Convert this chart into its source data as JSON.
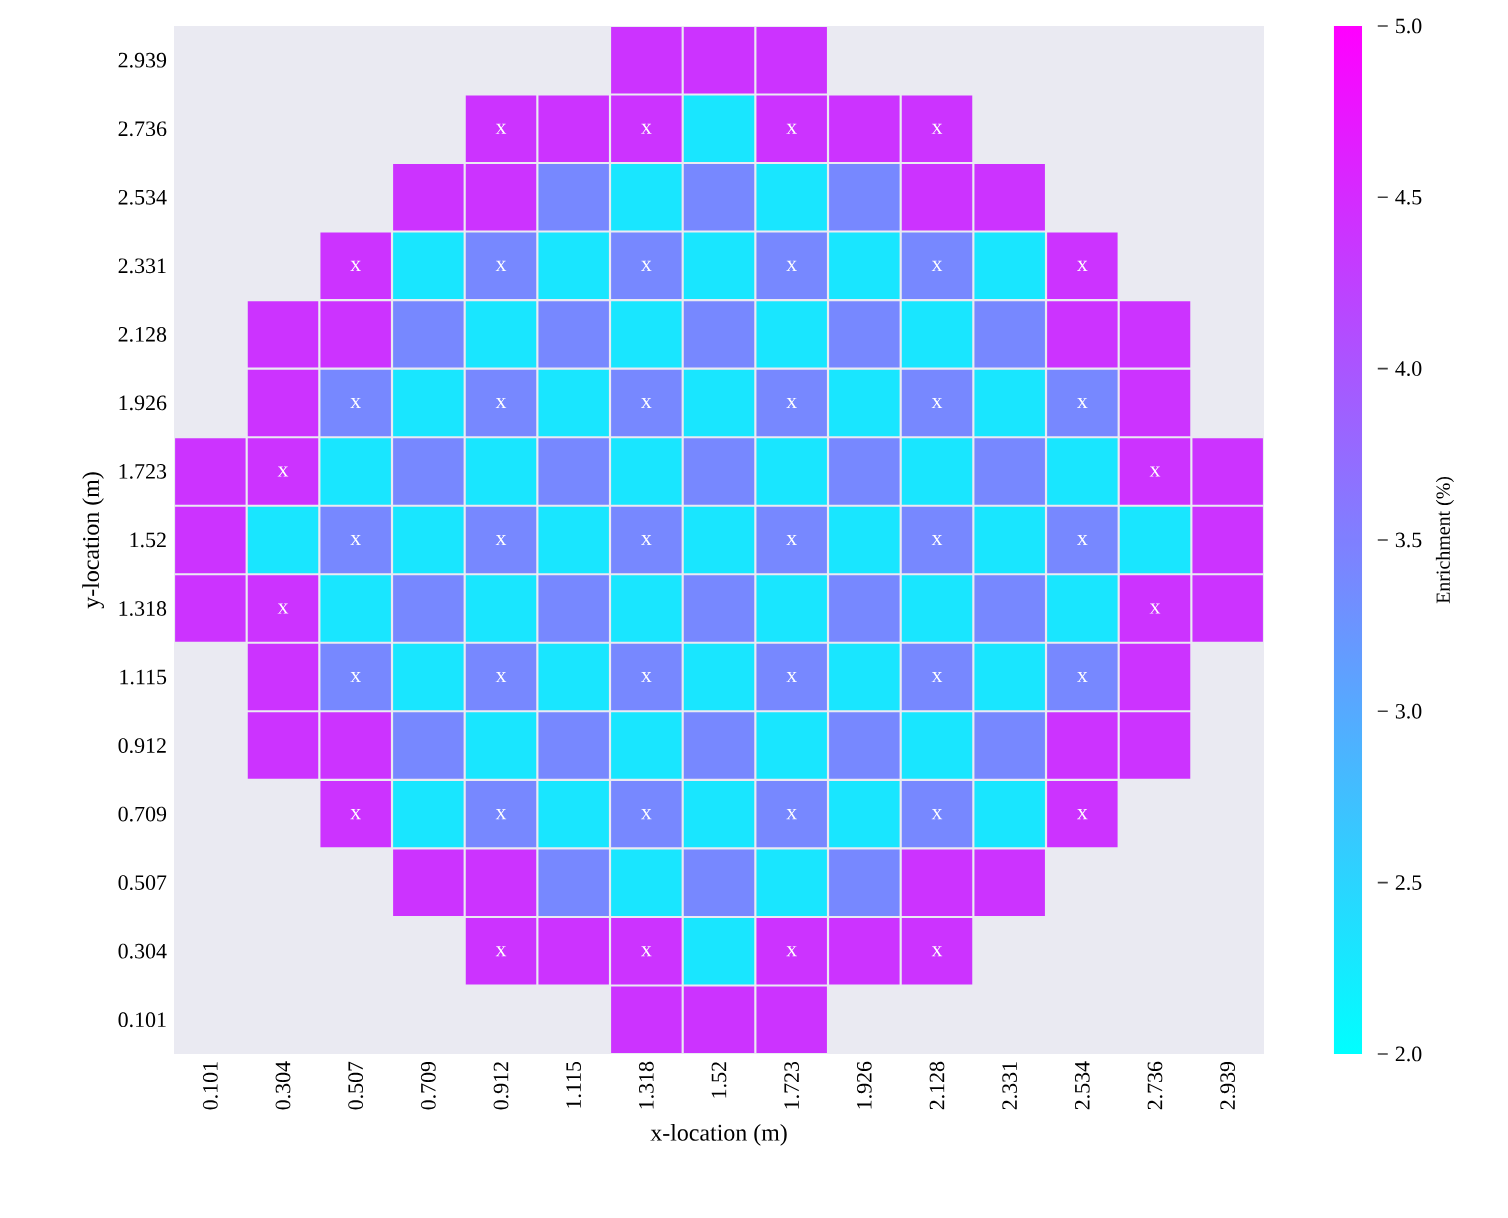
{
  "chart_data": {
    "type": "heatmap",
    "xlabel": "x-location (m)",
    "ylabel": "y-location (m)",
    "clabel": "Enrichment (%)",
    "categories": [
      "0.101",
      "0.304",
      "0.507",
      "0.709",
      "0.912",
      "1.115",
      "1.318",
      "1.52",
      "1.723",
      "1.926",
      "2.128",
      "2.331",
      "2.534",
      "2.736",
      "2.939"
    ],
    "y_categories": [
      "2.939",
      "2.736",
      "2.534",
      "2.331",
      "2.128",
      "1.926",
      "1.723",
      "1.52",
      "1.318",
      "1.115",
      "0.912",
      "0.709",
      "0.507",
      "0.304",
      "0.101"
    ],
    "cells": [
      [
        null,
        null,
        null,
        null,
        null,
        null,
        4.4,
        4.4,
        4.4,
        null,
        null,
        null,
        null,
        null,
        null
      ],
      [
        null,
        null,
        null,
        null,
        4.4,
        4.4,
        4.4,
        2.3,
        4.4,
        4.4,
        4.4,
        null,
        null,
        null,
        null
      ],
      [
        null,
        null,
        null,
        4.4,
        4.4,
        3.4,
        2.3,
        3.4,
        2.3,
        3.4,
        4.4,
        4.4,
        null,
        null,
        null
      ],
      [
        null,
        null,
        4.4,
        2.3,
        3.4,
        2.3,
        3.4,
        2.3,
        3.4,
        2.3,
        3.4,
        2.3,
        4.4,
        null,
        null
      ],
      [
        null,
        4.4,
        4.4,
        3.4,
        2.3,
        3.4,
        2.3,
        3.4,
        2.3,
        3.4,
        2.3,
        3.4,
        4.4,
        4.4,
        null
      ],
      [
        null,
        4.4,
        3.4,
        2.3,
        3.4,
        2.3,
        3.4,
        2.3,
        3.4,
        2.3,
        3.4,
        2.3,
        3.4,
        4.4,
        null
      ],
      [
        4.4,
        4.4,
        2.3,
        3.4,
        2.3,
        3.4,
        2.3,
        3.4,
        2.3,
        3.4,
        2.3,
        3.4,
        2.3,
        4.4,
        4.4
      ],
      [
        4.4,
        2.3,
        3.4,
        2.3,
        3.4,
        2.3,
        3.4,
        2.3,
        3.4,
        2.3,
        3.4,
        2.3,
        3.4,
        2.3,
        4.4
      ],
      [
        4.4,
        4.4,
        2.3,
        3.4,
        2.3,
        3.4,
        2.3,
        3.4,
        2.3,
        3.4,
        2.3,
        3.4,
        2.3,
        4.4,
        4.4
      ],
      [
        null,
        4.4,
        3.4,
        2.3,
        3.4,
        2.3,
        3.4,
        2.3,
        3.4,
        2.3,
        3.4,
        2.3,
        3.4,
        4.4,
        null
      ],
      [
        null,
        4.4,
        4.4,
        3.4,
        2.3,
        3.4,
        2.3,
        3.4,
        2.3,
        3.4,
        2.3,
        3.4,
        4.4,
        4.4,
        null
      ],
      [
        null,
        null,
        4.4,
        2.3,
        3.4,
        2.3,
        3.4,
        2.3,
        3.4,
        2.3,
        3.4,
        2.3,
        4.4,
        null,
        null
      ],
      [
        null,
        null,
        null,
        4.4,
        4.4,
        3.4,
        2.3,
        3.4,
        2.3,
        3.4,
        4.4,
        4.4,
        null,
        null,
        null
      ],
      [
        null,
        null,
        null,
        null,
        4.4,
        4.4,
        4.4,
        2.3,
        4.4,
        4.4,
        4.4,
        null,
        null,
        null,
        null
      ],
      [
        null,
        null,
        null,
        null,
        null,
        null,
        4.4,
        4.4,
        4.4,
        null,
        null,
        null,
        null,
        null,
        null
      ]
    ],
    "cell_labels": [
      [
        null,
        null,
        null,
        null,
        null,
        null,
        null,
        null,
        null,
        null,
        null,
        null,
        null,
        null,
        null
      ],
      [
        null,
        null,
        null,
        null,
        "x",
        null,
        "x",
        null,
        "x",
        null,
        "x",
        null,
        null,
        null,
        null
      ],
      [
        null,
        null,
        null,
        null,
        null,
        null,
        null,
        null,
        null,
        null,
        null,
        null,
        null,
        null,
        null
      ],
      [
        null,
        null,
        "x",
        null,
        "x",
        null,
        "x",
        null,
        "x",
        null,
        "x",
        null,
        "x",
        null,
        null
      ],
      [
        null,
        null,
        null,
        null,
        null,
        null,
        null,
        null,
        null,
        null,
        null,
        null,
        null,
        null,
        null
      ],
      [
        null,
        null,
        "x",
        null,
        "x",
        null,
        "x",
        null,
        "x",
        null,
        "x",
        null,
        "x",
        null,
        null
      ],
      [
        null,
        "x",
        null,
        null,
        null,
        null,
        null,
        null,
        null,
        null,
        null,
        null,
        null,
        "x",
        null
      ],
      [
        null,
        null,
        "x",
        null,
        "x",
        null,
        "x",
        null,
        "x",
        null,
        "x",
        null,
        "x",
        null,
        null
      ],
      [
        null,
        "x",
        null,
        null,
        null,
        null,
        null,
        null,
        null,
        null,
        null,
        null,
        null,
        "x",
        null
      ],
      [
        null,
        null,
        "x",
        null,
        "x",
        null,
        "x",
        null,
        "x",
        null,
        "x",
        null,
        "x",
        null,
        null
      ],
      [
        null,
        null,
        null,
        null,
        null,
        null,
        null,
        null,
        null,
        null,
        null,
        null,
        null,
        null,
        null
      ],
      [
        null,
        null,
        "x",
        null,
        "x",
        null,
        "x",
        null,
        "x",
        null,
        "x",
        null,
        "x",
        null,
        null
      ],
      [
        null,
        null,
        null,
        null,
        null,
        null,
        null,
        null,
        null,
        null,
        null,
        null,
        null,
        null,
        null
      ],
      [
        null,
        null,
        null,
        null,
        "x",
        null,
        "x",
        null,
        "x",
        null,
        "x",
        null,
        null,
        null,
        null
      ],
      [
        null,
        null,
        null,
        null,
        null,
        null,
        null,
        null,
        null,
        null,
        null,
        null,
        null,
        null,
        null
      ]
    ],
    "clim": [
      2,
      5
    ],
    "cticks": [
      {
        "value": 2,
        "label": "2.0"
      },
      {
        "value": 2.5,
        "label": "2.5"
      },
      {
        "value": 3,
        "label": "3.0"
      },
      {
        "value": 3.5,
        "label": "3.5"
      },
      {
        "value": 4,
        "label": "4.0"
      },
      {
        "value": 4.5,
        "label": "4.5"
      },
      {
        "value": 5,
        "label": "5.0"
      }
    ]
  }
}
